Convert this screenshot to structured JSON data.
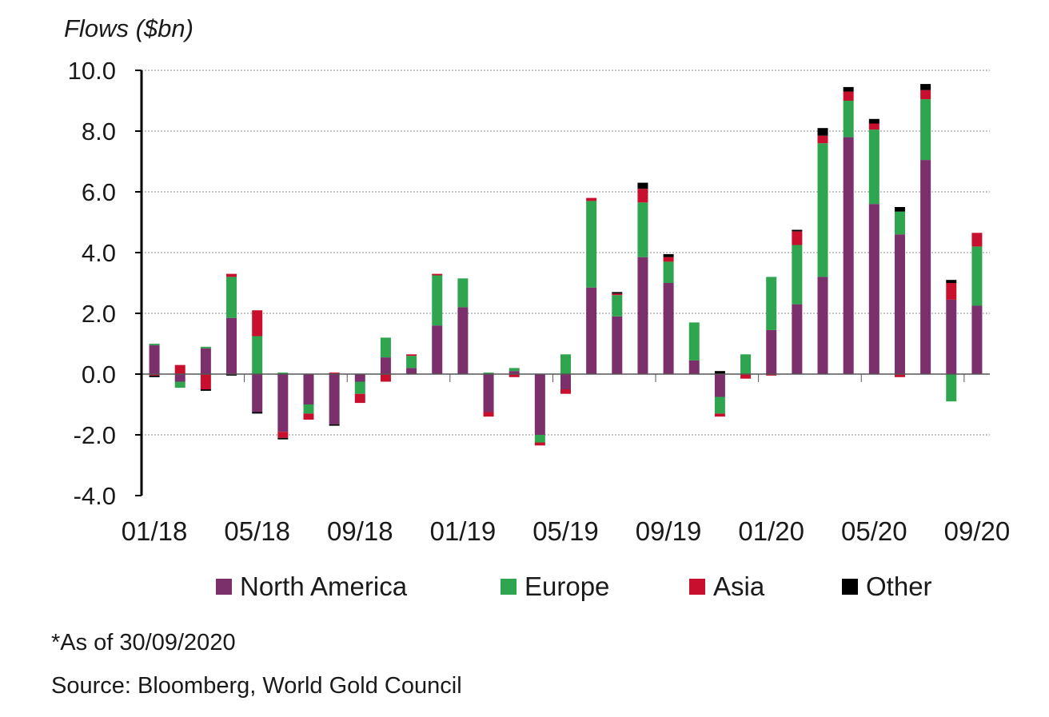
{
  "chart_data": {
    "type": "bar",
    "stacked": true,
    "ylabel": "Flows ($bn)",
    "ylim": [
      -4.0,
      10.0
    ],
    "yticks": [
      "10.0",
      "8.0",
      "6.0",
      "4.0",
      "2.0",
      "0.0",
      "-2.0",
      "-4.0"
    ],
    "ytick_values": [
      10,
      8,
      6,
      4,
      2,
      0,
      -2,
      -4
    ],
    "grid": true,
    "categories": [
      "01/18",
      "02/18",
      "03/18",
      "04/18",
      "05/18",
      "06/18",
      "07/18",
      "08/18",
      "09/18",
      "10/18",
      "11/18",
      "12/18",
      "01/19",
      "02/19",
      "03/19",
      "04/19",
      "05/19",
      "06/19",
      "07/19",
      "08/19",
      "09/19",
      "10/19",
      "11/19",
      "12/19",
      "01/20",
      "02/20",
      "03/20",
      "04/20",
      "05/20",
      "06/20",
      "07/20",
      "08/20",
      "09/20"
    ],
    "xtick_labels": [
      "01/18",
      "05/18",
      "09/18",
      "01/19",
      "05/19",
      "09/19",
      "01/20",
      "05/20",
      "09/20"
    ],
    "xtick_indices": [
      0,
      4,
      8,
      12,
      16,
      20,
      24,
      28,
      32
    ],
    "series": [
      {
        "name": "North America",
        "color": "#7B2F6B",
        "values": [
          0.95,
          -0.25,
          0.85,
          1.85,
          -1.25,
          -1.9,
          -1.0,
          -1.65,
          -0.25,
          0.55,
          0.2,
          1.6,
          2.2,
          -1.25,
          0.1,
          -2.0,
          -0.5,
          2.85,
          1.9,
          3.85,
          3.0,
          0.45,
          -0.75,
          0.0,
          1.45,
          2.3,
          3.2,
          7.8,
          5.6,
          4.6,
          7.05,
          2.45,
          2.25
        ]
      },
      {
        "name": "Europe",
        "color": "#2EA54E",
        "values": [
          0.05,
          -0.2,
          0.05,
          1.35,
          1.25,
          0.05,
          -0.3,
          0.0,
          -0.4,
          0.65,
          0.4,
          1.65,
          0.95,
          0.05,
          0.1,
          -0.25,
          0.65,
          2.85,
          0.7,
          1.8,
          0.7,
          1.25,
          -0.55,
          0.65,
          1.75,
          1.95,
          4.4,
          1.2,
          2.45,
          0.75,
          2.0,
          -0.9,
          1.95
        ]
      },
      {
        "name": "Asia",
        "color": "#C8102E",
        "values": [
          -0.05,
          0.3,
          -0.5,
          0.1,
          0.85,
          -0.2,
          -0.2,
          0.05,
          -0.3,
          -0.25,
          0.05,
          0.05,
          0.0,
          -0.15,
          -0.1,
          -0.1,
          -0.15,
          0.1,
          0.05,
          0.45,
          0.15,
          0.0,
          -0.1,
          -0.15,
          -0.05,
          0.45,
          0.25,
          0.3,
          0.2,
          -0.1,
          0.3,
          0.55,
          0.45
        ]
      },
      {
        "name": "Other",
        "color": "#000000",
        "values": [
          -0.05,
          0.0,
          -0.05,
          -0.05,
          -0.05,
          -0.05,
          0.0,
          -0.05,
          0.0,
          0.0,
          0.0,
          0.0,
          0.0,
          0.0,
          0.0,
          0.0,
          0.0,
          0.0,
          0.05,
          0.2,
          0.1,
          0.0,
          0.1,
          0.0,
          0.0,
          0.05,
          0.25,
          0.15,
          0.15,
          0.15,
          0.2,
          0.1,
          0.0
        ]
      }
    ],
    "legend_position": "bottom"
  },
  "footnote": "*As of 30/09/2020",
  "source": "Source: Bloomberg, World Gold Council"
}
